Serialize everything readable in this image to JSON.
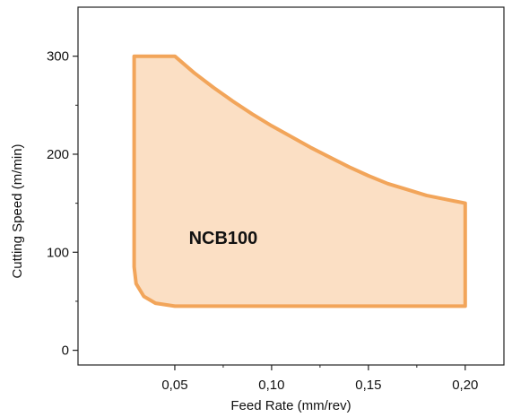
{
  "chart_data": {
    "type": "area",
    "title": "",
    "xlabel": "Feed Rate (mm/rev)",
    "ylabel": "Cutting Speed (m/min)",
    "xlim": [
      0.0,
      0.22
    ],
    "ylim": [
      -15,
      350
    ],
    "x_ticks": [
      {
        "value": 0.05,
        "label": "0,05"
      },
      {
        "value": 0.1,
        "label": "0,10"
      },
      {
        "value": 0.15,
        "label": "0,15"
      },
      {
        "value": 0.2,
        "label": "0,20"
      }
    ],
    "y_ticks": [
      {
        "value": 0,
        "label": "0"
      },
      {
        "value": 100,
        "label": "100"
      },
      {
        "value": 200,
        "label": "200"
      },
      {
        "value": 300,
        "label": "300"
      }
    ],
    "x_minor_ticks": [
      0.075,
      0.125,
      0.175
    ],
    "y_minor_ticks": [
      50,
      150,
      250
    ],
    "series": [
      {
        "name": "NCB100",
        "label_position": [
          0.075,
          115
        ],
        "fill_color": "#fbdfc4",
        "stroke_color": "#f2a55a",
        "boundary": [
          {
            "x": 0.029,
            "y": 300
          },
          {
            "x": 0.05,
            "y": 300
          },
          {
            "x": 0.06,
            "y": 283
          },
          {
            "x": 0.07,
            "y": 268
          },
          {
            "x": 0.08,
            "y": 254
          },
          {
            "x": 0.09,
            "y": 241
          },
          {
            "x": 0.1,
            "y": 229
          },
          {
            "x": 0.11,
            "y": 218
          },
          {
            "x": 0.12,
            "y": 207
          },
          {
            "x": 0.13,
            "y": 197
          },
          {
            "x": 0.14,
            "y": 187
          },
          {
            "x": 0.15,
            "y": 178
          },
          {
            "x": 0.16,
            "y": 170
          },
          {
            "x": 0.17,
            "y": 164
          },
          {
            "x": 0.18,
            "y": 158
          },
          {
            "x": 0.19,
            "y": 154
          },
          {
            "x": 0.2,
            "y": 150
          },
          {
            "x": 0.2,
            "y": 45
          },
          {
            "x": 0.05,
            "y": 45
          },
          {
            "x": 0.04,
            "y": 48
          },
          {
            "x": 0.034,
            "y": 55
          },
          {
            "x": 0.03,
            "y": 68
          },
          {
            "x": 0.029,
            "y": 85
          },
          {
            "x": 0.029,
            "y": 300
          }
        ]
      }
    ]
  }
}
